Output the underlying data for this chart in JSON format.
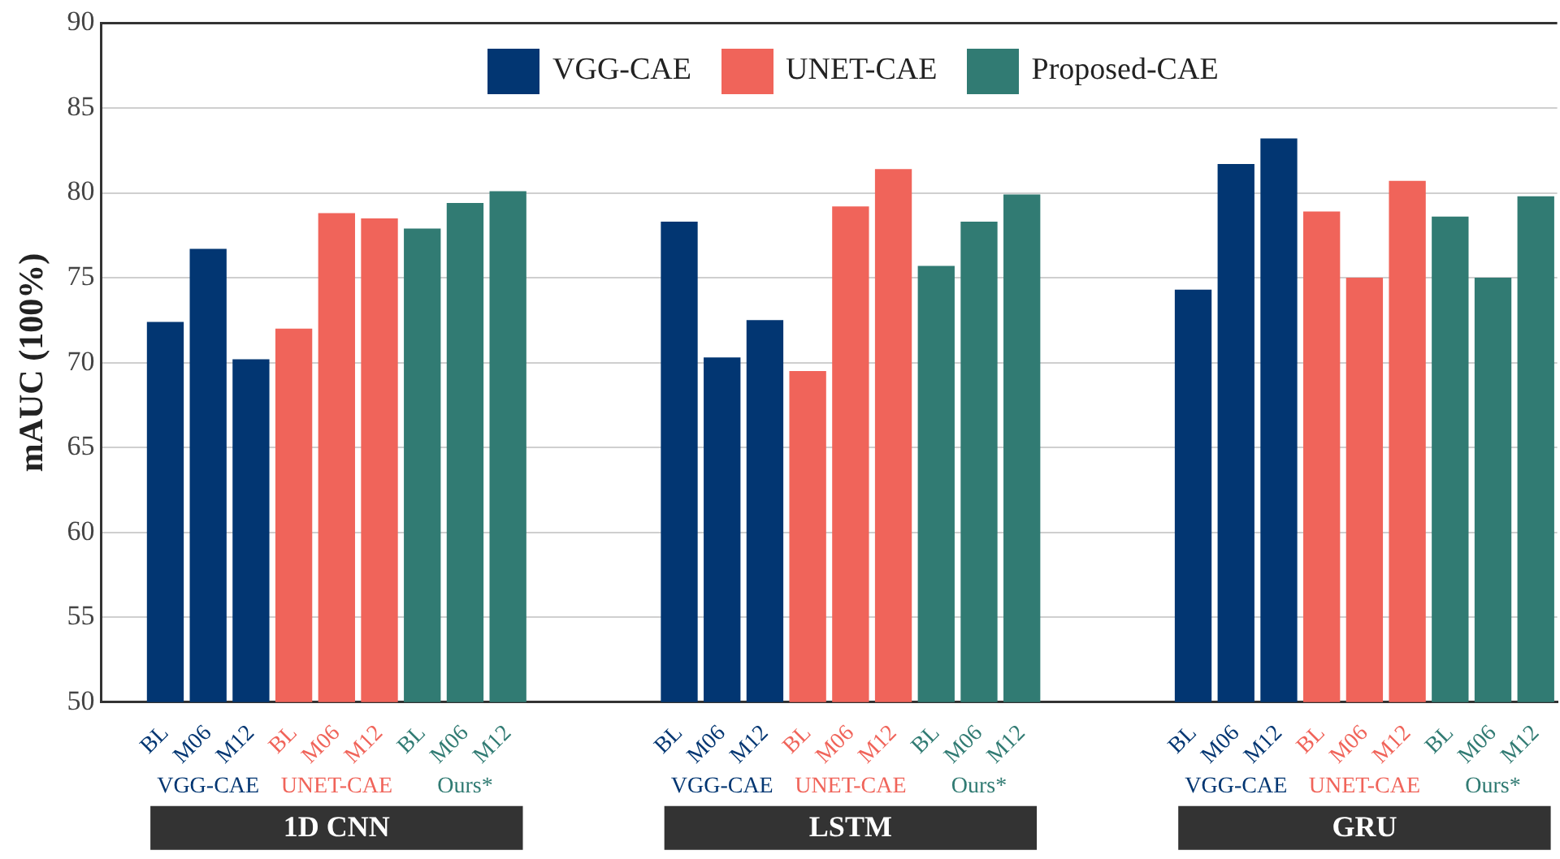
{
  "chart_data": {
    "type": "bar",
    "ylabel": "mAUC (100%)",
    "categories": [
      null,
      "BL",
      "M06",
      "M12",
      "BL",
      "M06",
      "M12",
      "BL",
      "M06",
      "M12",
      null,
      null,
      null,
      "BL",
      "M06",
      "M12",
      "BL",
      "M06",
      "M12",
      "BL",
      "M06",
      "M12",
      null,
      null,
      null,
      "BL",
      "M06",
      "M12",
      "BL",
      "M06",
      "M12",
      "BL",
      "M06",
      "M12"
    ],
    "series": [
      {
        "name": "VGG-CAE",
        "color": "#023672",
        "values": [
          null,
          72.4,
          76.7,
          70.2,
          null,
          null,
          null,
          null,
          null,
          null,
          null,
          null,
          null,
          78.3,
          70.3,
          72.5,
          null,
          null,
          null,
          null,
          null,
          null,
          null,
          null,
          null,
          74.3,
          81.7,
          83.2,
          null,
          null,
          null,
          null,
          null,
          null
        ]
      },
      {
        "name": "UNET-CAE",
        "color": "#f0645a",
        "values": [
          null,
          null,
          null,
          null,
          72.0,
          78.8,
          78.5,
          null,
          null,
          null,
          null,
          null,
          null,
          null,
          null,
          null,
          69.5,
          79.2,
          81.4,
          null,
          null,
          null,
          null,
          null,
          null,
          null,
          null,
          null,
          78.9,
          75.0,
          80.7,
          null,
          null,
          null
        ]
      },
      {
        "name": "Proposed-CAE",
        "color": "#317b73",
        "values": [
          null,
          null,
          null,
          null,
          null,
          null,
          null,
          77.9,
          79.4,
          80.1,
          null,
          null,
          null,
          null,
          null,
          null,
          null,
          null,
          null,
          75.7,
          78.3,
          79.9,
          null,
          null,
          null,
          null,
          null,
          null,
          null,
          null,
          null,
          78.6,
          75.0,
          79.8
        ]
      }
    ],
    "ylim": [
      50,
      90
    ],
    "yticks": [
      50,
      55,
      60,
      65,
      70,
      75,
      80,
      85,
      90
    ],
    "grid": "y",
    "legend": "top",
    "annotations": [
      "VGG-CAE",
      "UNET-CAE",
      "Ours*",
      "VGG-CAE",
      "UNET-CAE",
      "Ours*",
      "VGG-CAE",
      "UNET-CAE",
      "Ours*",
      "1D CNN",
      "LSTM",
      "GRU"
    ]
  }
}
